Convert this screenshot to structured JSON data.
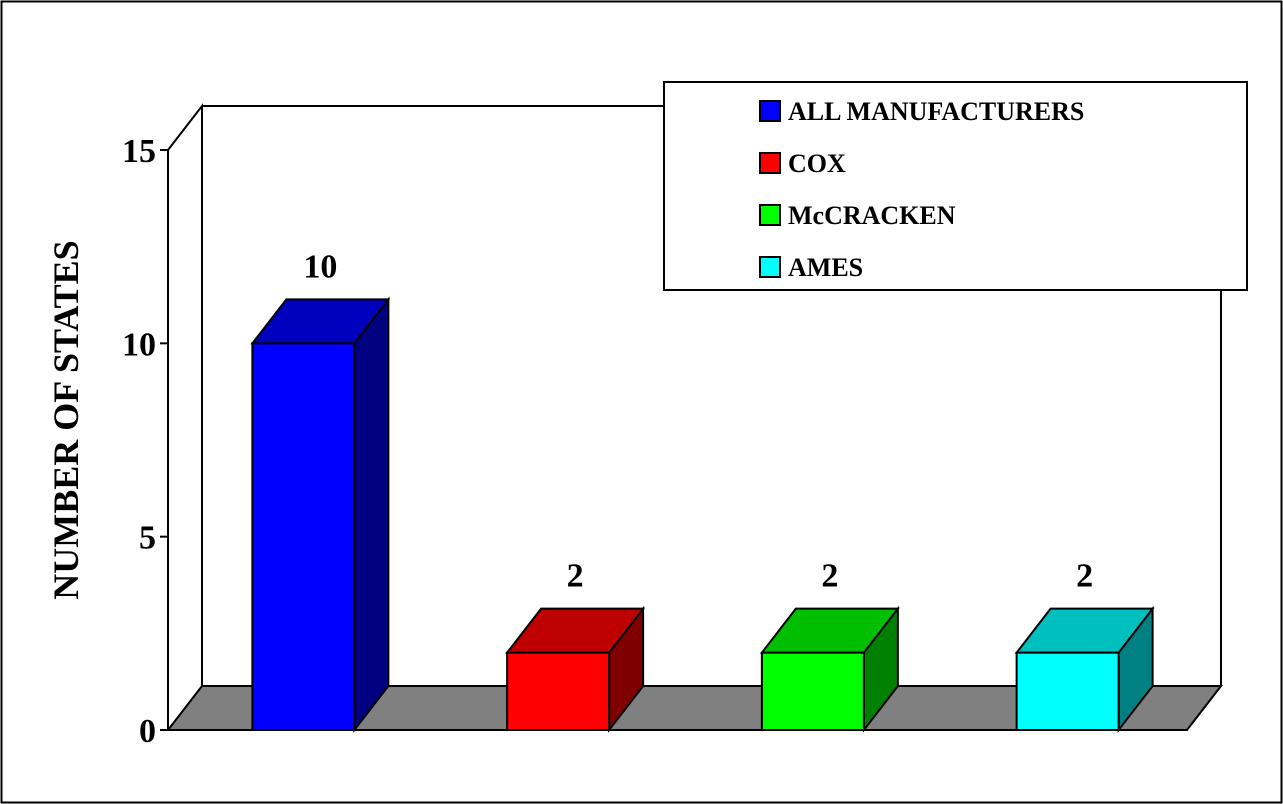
{
  "chart_data": {
    "type": "bar",
    "categories": [
      "ALL MANUFACTURERS",
      "COX",
      "McCRACKEN",
      "AMES"
    ],
    "values": [
      10,
      2,
      2,
      2
    ],
    "data_labels": [
      "10",
      "2",
      "2",
      "2"
    ],
    "colors": [
      "#0000ff",
      "#ff0000",
      "#00ff00",
      "#00ffff"
    ],
    "title": "",
    "xlabel": "",
    "ylabel": "NUMBER OF STATES",
    "ylim": [
      0,
      15
    ],
    "yticks": [
      0,
      5,
      10,
      15
    ],
    "ytick_labels": [
      "0",
      "5",
      "10",
      "15"
    ],
    "grid": false,
    "legend": {
      "placement": "top-right",
      "entries": [
        "ALL MANUFACTURERS",
        "COX",
        "McCRACKEN",
        "AMES"
      ]
    },
    "style": "3d",
    "floor_color": "#808080"
  }
}
